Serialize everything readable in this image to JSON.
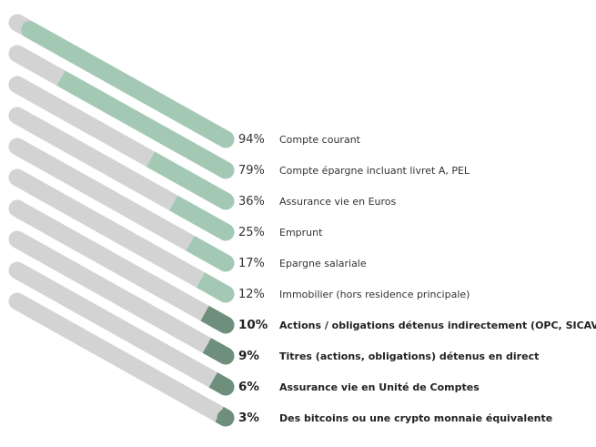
{
  "chart_data": {
    "type": "bar",
    "title": "",
    "xlabel": "",
    "ylabel": "",
    "unit": "%",
    "highlight_from_index": 6,
    "colors": {
      "track": "#d3d3d3",
      "fill": "#a3c9b4",
      "fill_dark": "#6d8f7c"
    },
    "categories": [
      "Compte courant",
      "Compte épargne incluant livret A, PEL",
      "Assurance vie en Euros",
      "Emprunt",
      "Epargne salariale",
      "Immobilier (hors residence principale)",
      "Actions / obligations détenus indirectement (OPC, SICAV...)",
      "Titres (actions, obligations) détenus en direct",
      "Assurance vie en Unité de Comptes",
      "Des bitcoins ou une crypto monnaie équivalente"
    ],
    "values": [
      94,
      79,
      36,
      25,
      17,
      12,
      10,
      9,
      6,
      3
    ],
    "value_labels": [
      "94%",
      "79%",
      "36%",
      "25%",
      "17%",
      "12%",
      "10%",
      "9%",
      "6%",
      "3%"
    ]
  }
}
